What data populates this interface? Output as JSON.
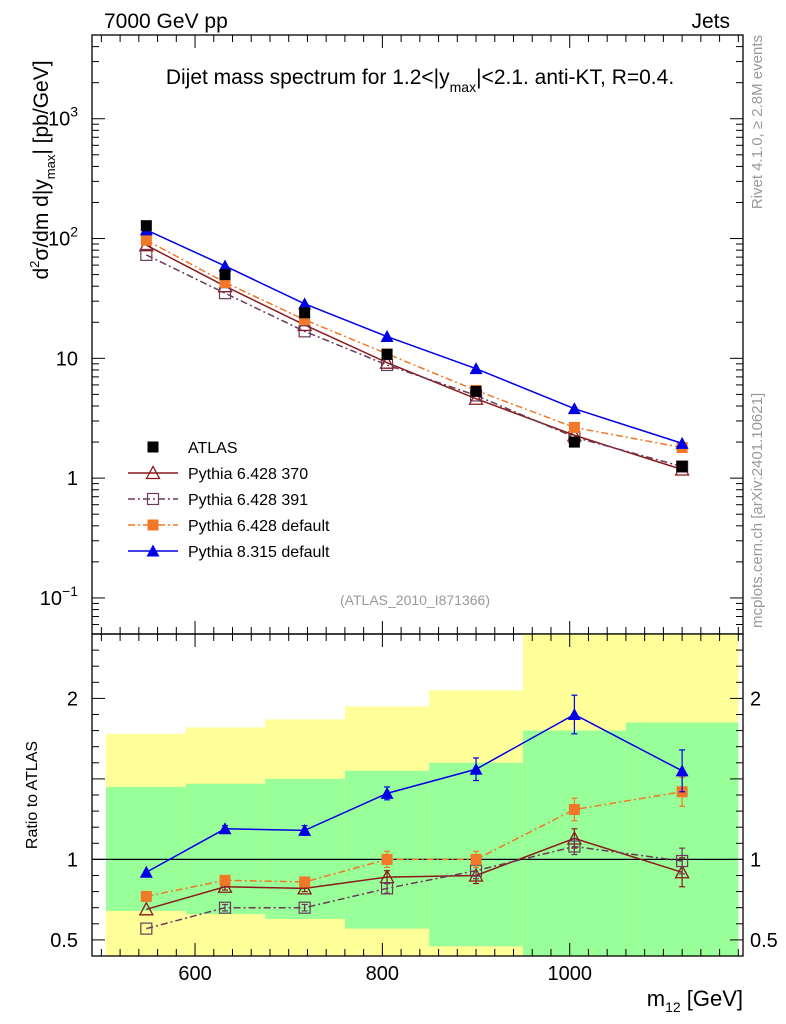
{
  "header": {
    "left": "7000 GeV pp",
    "right": "Jets"
  },
  "side_labels": {
    "rivet": "Rivet 4.1.0, ≥ 2.8M events",
    "mcplots": "mcplots.cern.ch [arXiv:2401.10621]"
  },
  "main_plot": {
    "title_prefix": "Dijet mass spectrum for 1.2<|y",
    "title_sub": "max",
    "title_suffix": "|<2.1.  anti-KT, R=0.4.",
    "ylabel": "d²σ/dm d|y_max| [pb/GeV]",
    "ylabel_parts": {
      "a": "d",
      "sup": "2",
      "b": "σ/dm d|y",
      "sub": "max",
      "c": "| [pb/GeV]"
    },
    "analysis_id": "(ATLAS_2010_I871366)",
    "yticks": [
      {
        "base": "10",
        "exp": "3",
        "value": 1000
      },
      {
        "base": "10",
        "exp": "2",
        "value": 100
      },
      {
        "base": "10",
        "exp": "",
        "value": 10
      },
      {
        "base": "1",
        "exp": "",
        "value": 1
      },
      {
        "base": "10",
        "exp": "−1",
        "value": 0.1
      }
    ]
  },
  "ratio_plot": {
    "ylabel": "Ratio to ATLAS",
    "yticks": [
      "0.5",
      "1",
      "2"
    ],
    "xticks": [
      "600",
      "800",
      "1000"
    ],
    "xlabel_main": "m",
    "xlabel_sub": "12",
    "xlabel_unit": " [GeV]"
  },
  "legend": [
    {
      "label": "ATLAS",
      "key": "data"
    },
    {
      "label": "Pythia 6.428 370",
      "key": "s370"
    },
    {
      "label": "Pythia 6.428 391",
      "key": "s391"
    },
    {
      "label": "Pythia 6.428 default",
      "key": "s6def"
    },
    {
      "label": "Pythia 8.315 default",
      "key": "s8def"
    }
  ],
  "colors": {
    "data": "#000000",
    "s370": "#8b1a1a",
    "s391": "#6b3a5a",
    "s6def": "#f07828",
    "s8def": "#0000e6",
    "band_inner": "#99ff99",
    "band_outer": "#ffff99"
  },
  "chart_data": {
    "type": "line",
    "title": "Dijet mass spectrum for 1.2<|y_max|<2.1.  anti-KT, R=0.4.",
    "xlabel": "m_12 [GeV]",
    "ylabel": "d²σ/dm d|y_max| [pb/GeV]",
    "xlim": [
      490,
      1185
    ],
    "ylim_main": [
      0.05,
      5000
    ],
    "ylim_ratio": [
      0.4,
      2.4
    ],
    "bins": [
      [
        505,
        590
      ],
      [
        590,
        675
      ],
      [
        675,
        760
      ],
      [
        760,
        850
      ],
      [
        850,
        950
      ],
      [
        950,
        1060
      ],
      [
        1060,
        1180
      ]
    ],
    "x": [
      548,
      632,
      717,
      805,
      900,
      1005,
      1120
    ],
    "data": {
      "name": "ATLAS",
      "values": [
        128,
        50,
        24,
        10.8,
        5.3,
        2.0,
        1.25
      ],
      "band_inner": [
        [
          0.68,
          1.45
        ],
        [
          0.66,
          1.47
        ],
        [
          0.63,
          1.5
        ],
        [
          0.57,
          1.55
        ],
        [
          0.46,
          1.6
        ],
        [
          0.4,
          1.8
        ],
        [
          0.4,
          1.85
        ]
      ],
      "band_outer": [
        [
          0.4,
          1.78
        ],
        [
          0.4,
          1.82
        ],
        [
          0.4,
          1.87
        ],
        [
          0.4,
          1.95
        ],
        [
          0.4,
          2.05
        ],
        [
          0.4,
          2.4
        ],
        [
          0.4,
          2.4
        ]
      ]
    },
    "series": [
      {
        "name": "Pythia 6.428 370",
        "key": "s370",
        "marker": "open-triangle",
        "dash": "",
        "values": [
          88,
          40,
          19,
          9.2,
          4.6,
          2.28,
          1.18
        ],
        "ratio": [
          0.69,
          0.83,
          0.82,
          0.89,
          0.9,
          1.13,
          0.92
        ],
        "ratio_err": [
          0.01,
          0.02,
          0.02,
          0.04,
          0.05,
          0.06,
          0.09
        ]
      },
      {
        "name": "Pythia 6.428 391",
        "key": "s391",
        "marker": "open-square",
        "dash": "7 3 2 3",
        "values": [
          73,
          35,
          16.8,
          8.8,
          4.9,
          2.2,
          1.25
        ],
        "ratio": [
          0.57,
          0.7,
          0.7,
          0.82,
          0.93,
          1.08,
          0.99
        ],
        "ratio_err": [
          0.01,
          0.02,
          0.02,
          0.03,
          0.05,
          0.05,
          0.08
        ]
      },
      {
        "name": "Pythia 6.428 default",
        "key": "s6def",
        "marker": "filled-square",
        "dash": "7 3 2 3",
        "values": [
          97,
          43,
          21,
          10.9,
          5.4,
          2.65,
          1.8
        ],
        "ratio": [
          0.77,
          0.87,
          0.86,
          1.0,
          1.0,
          1.31,
          1.42
        ],
        "ratio_err": [
          0.01,
          0.02,
          0.02,
          0.05,
          0.05,
          0.07,
          0.09
        ]
      },
      {
        "name": "Pythia 8.315 default",
        "key": "s8def",
        "marker": "filled-triangle",
        "dash": "",
        "values": [
          118,
          59,
          28.5,
          15.2,
          8.2,
          3.8,
          1.95
        ],
        "ratio": [
          0.92,
          1.19,
          1.18,
          1.41,
          1.56,
          1.9,
          1.55
        ],
        "ratio_err": [
          0.01,
          0.02,
          0.03,
          0.04,
          0.07,
          0.12,
          0.13
        ]
      }
    ]
  }
}
